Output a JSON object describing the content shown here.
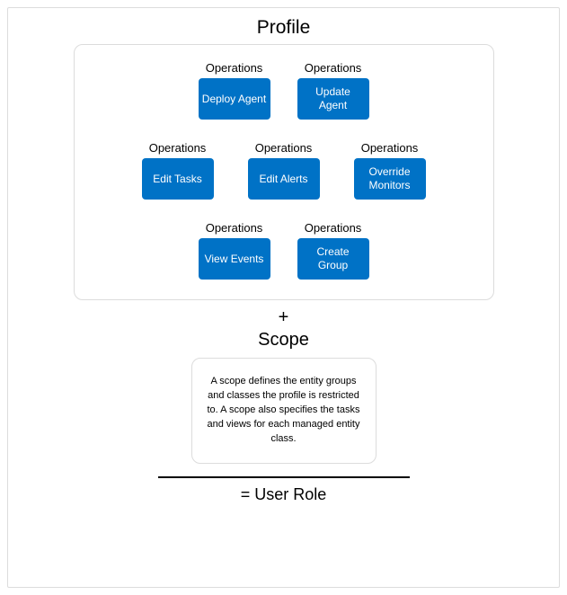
{
  "colors": {
    "button_bg": "#0072c6",
    "button_fg": "#ffffff",
    "border": "#dcdcdc",
    "text": "#000000",
    "background": "#ffffff"
  },
  "profile": {
    "title": "Profile",
    "op_label": "Operations",
    "rows": [
      [
        "Deploy Agent",
        "Update Agent"
      ],
      [
        "Edit Tasks",
        "Edit Alerts",
        "Override Monitors"
      ],
      [
        "View Events",
        "Create Group"
      ]
    ]
  },
  "plus": "+",
  "scope": {
    "title": "Scope",
    "text": "A scope defines the entity groups and classes the profile is restricted to. A scope also specifies the tasks and views for each managed entity class."
  },
  "result": "= User Role"
}
